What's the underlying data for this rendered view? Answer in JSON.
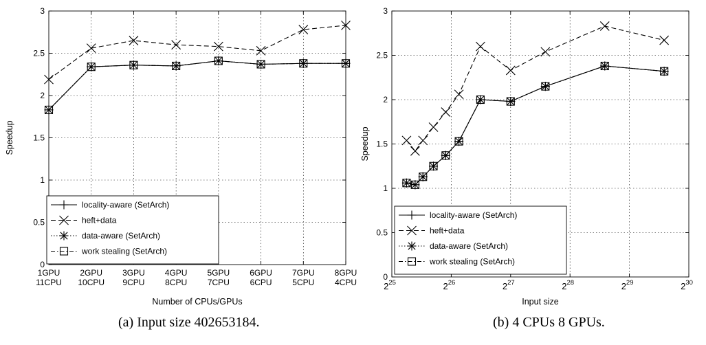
{
  "charts": [
    {
      "caption": "(a) Input size 402653184.",
      "chart_data": {
        "type": "line",
        "xlabel": "Number of CPUs/GPUs",
        "ylabel": "Speedup",
        "ylim": [
          0,
          3
        ],
        "yticks": [
          "0",
          "0.5",
          "1",
          "1.5",
          "2",
          "2.5",
          "3"
        ],
        "categories": [
          [
            "1GPU",
            "11CPU"
          ],
          [
            "2GPU",
            "10CPU"
          ],
          [
            "3GPU",
            "9CPU"
          ],
          [
            "4GPU",
            "8CPU"
          ],
          [
            "5GPU",
            "7CPU"
          ],
          [
            "6GPU",
            "6CPU"
          ],
          [
            "7GPU",
            "5CPU"
          ],
          [
            "8GPU",
            "4CPU"
          ]
        ],
        "grid": true,
        "legend_position": "bottom-left",
        "series": [
          {
            "name": "locality-aware (SetArch)",
            "marker": "plus",
            "dash": "solid",
            "values": [
              1.83,
              2.34,
              2.36,
              2.35,
              2.41,
              2.37,
              2.38,
              2.38
            ]
          },
          {
            "name": "heft+data",
            "marker": "x",
            "dash": "dashed",
            "values": [
              2.19,
              2.56,
              2.65,
              2.6,
              2.58,
              2.53,
              2.78,
              2.83
            ]
          },
          {
            "name": "data-aware (SetArch)",
            "marker": "star",
            "dash": "dotted",
            "values": [
              1.83,
              2.34,
              2.36,
              2.35,
              2.41,
              2.37,
              2.38,
              2.38
            ]
          },
          {
            "name": "work stealing (SetArch)",
            "marker": "square",
            "dash": "dashdot",
            "values": [
              1.83,
              2.34,
              2.36,
              2.35,
              2.41,
              2.37,
              2.38,
              2.38
            ]
          }
        ]
      }
    },
    {
      "caption": "(b) 4 CPUs 8 GPUs.",
      "chart_data": {
        "type": "line",
        "xlabel": "Input size",
        "ylabel": "Speedup",
        "xscale": "log2",
        "xlim": [
          33554432,
          1073741824
        ],
        "ylim": [
          0,
          3
        ],
        "yticks": [
          "0",
          "0.5",
          "1",
          "1.5",
          "2",
          "2.5",
          "3"
        ],
        "xticks": [
          {
            "base": "2",
            "exp": "25"
          },
          {
            "base": "2",
            "exp": "26"
          },
          {
            "base": "2",
            "exp": "27"
          },
          {
            "base": "2",
            "exp": "28"
          },
          {
            "base": "2",
            "exp": "29"
          },
          {
            "base": "2",
            "exp": "30"
          }
        ],
        "x": [
          39845888,
          44040192,
          48234496,
          54525952,
          62914560,
          73400320,
          94371840,
          134217728,
          201326592,
          402653184,
          805306368
        ],
        "grid": true,
        "legend_position": "bottom-right",
        "series": [
          {
            "name": "locality-aware (SetArch)",
            "marker": "plus",
            "dash": "solid",
            "values": [
              1.06,
              1.04,
              1.13,
              1.25,
              1.37,
              1.53,
              2.0,
              1.98,
              2.15,
              2.38,
              2.32
            ]
          },
          {
            "name": "heft+data",
            "marker": "x",
            "dash": "dashed",
            "values": [
              1.54,
              1.42,
              1.54,
              1.69,
              1.86,
              2.06,
              2.6,
              2.33,
              2.54,
              2.83,
              2.67
            ]
          },
          {
            "name": "data-aware (SetArch)",
            "marker": "star",
            "dash": "dotted",
            "values": [
              1.06,
              1.04,
              1.13,
              1.25,
              1.37,
              1.53,
              2.0,
              1.98,
              2.15,
              2.38,
              2.32
            ]
          },
          {
            "name": "work stealing (SetArch)",
            "marker": "square",
            "dash": "dashdot",
            "values": [
              1.06,
              1.04,
              1.13,
              1.25,
              1.37,
              1.53,
              2.0,
              1.98,
              2.15,
              2.38,
              2.32
            ]
          }
        ]
      }
    }
  ]
}
